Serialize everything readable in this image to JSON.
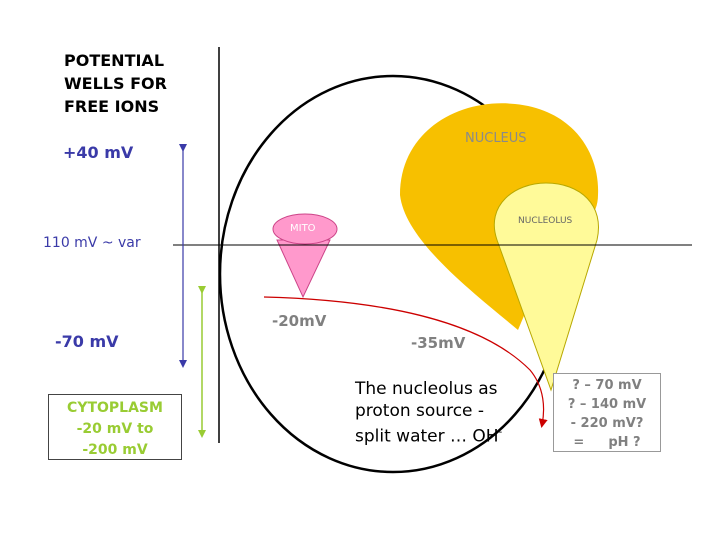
{
  "title": {
    "line1": "POTENTIAL",
    "line2": "WELLS FOR",
    "line3": "FREE IONS"
  },
  "scale": {
    "plus": "+40 mV",
    "baseline": "110 mV ~ var",
    "minus": "-70 mV"
  },
  "cytoplasm": {
    "label": "CYTOPLASM",
    "range_line1": "-20 mV to",
    "range_line2": "-200 mV"
  },
  "labels": {
    "mito": "MITO",
    "nucleus": "NUCLEUS",
    "nucleolus": "NUCLEOLUS",
    "mito_potential": "-20mV",
    "nucleus_potential": "-35mV"
  },
  "note": {
    "line1": "The nucleolus as",
    "line2": "proton source -",
    "line3": "split water … OH",
    "line3_sup": "-"
  },
  "questions": {
    "q1": "? – 70 mV",
    "q2": "? – 140 mV",
    "q3": "- 220 mV?",
    "q4_prefix": "=",
    "q4_suffix": "pH ?"
  },
  "colors": {
    "nucleus": "#f7c000",
    "nucleolus": "#fffa99",
    "mito": "#ff99cc",
    "axis_blue": "#3a3aa8",
    "cytoplasm_green": "#99cc33",
    "arrow_red": "#cc0000"
  }
}
